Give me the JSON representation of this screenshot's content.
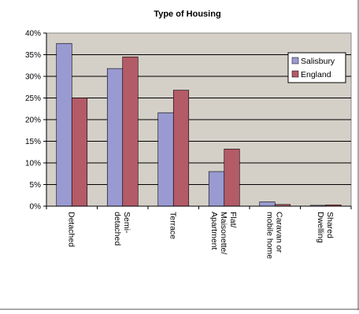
{
  "chart_data": {
    "type": "bar",
    "title": "Type of Housing",
    "categories": [
      [
        "Detached"
      ],
      [
        "Semi-",
        "detached"
      ],
      [
        "Terrace"
      ],
      [
        "Flat/",
        "Maisonette/",
        "Apartment"
      ],
      [
        "Caravan or",
        "mobile home"
      ],
      [
        "Shared",
        "Dwelling"
      ]
    ],
    "series": [
      {
        "name": "Salisbury",
        "color": "#9a9ad2",
        "values": [
          37.6,
          31.8,
          21.6,
          8.0,
          1.0,
          0.2
        ]
      },
      {
        "name": "England",
        "color": "#b35b67",
        "values": [
          25.0,
          34.5,
          26.8,
          13.2,
          0.4,
          0.3
        ]
      }
    ],
    "ylim": [
      0,
      40
    ],
    "yticks": [
      "0%",
      "5%",
      "10%",
      "15%",
      "20%",
      "25%",
      "30%",
      "35%",
      "40%"
    ],
    "grid": true,
    "legend_position": "right",
    "plot_background": "#d4d0c8"
  }
}
